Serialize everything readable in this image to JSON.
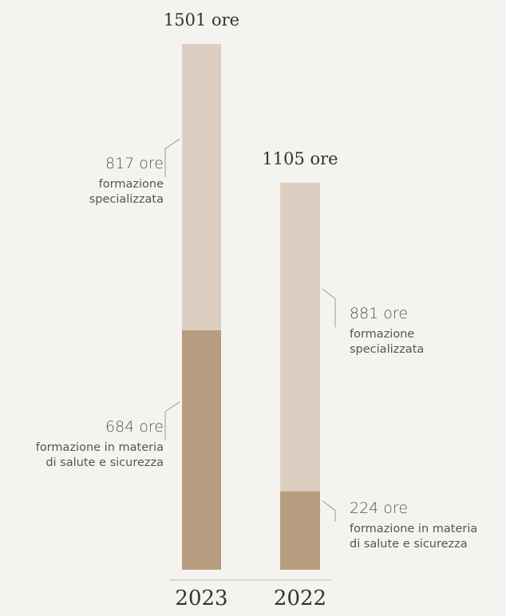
{
  "chart_data": {
    "type": "stacked-bar",
    "categories": [
      "2023",
      "2022"
    ],
    "series": [
      {
        "name": "formazione in materia di salute e sicurezza",
        "color": "#b89c80",
        "values": [
          684,
          224
        ],
        "value_labels": [
          "684 ore",
          "224 ore"
        ]
      },
      {
        "name": "formazione specializzata",
        "color": "#dccfc2",
        "values": [
          817,
          881
        ],
        "value_labels": [
          "817 ore",
          "881 ore"
        ]
      }
    ],
    "totals": [
      1501,
      1105
    ],
    "total_labels": [
      "1501 ore",
      "1105 ore"
    ]
  }
}
